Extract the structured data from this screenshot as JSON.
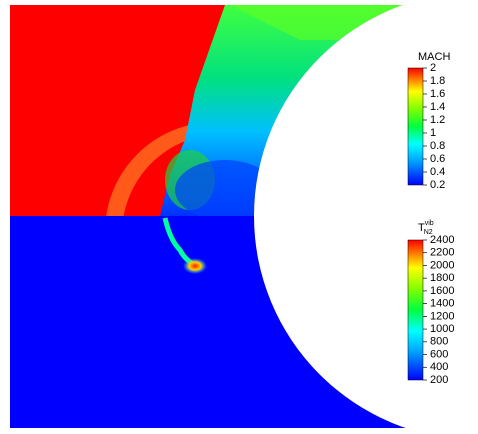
{
  "chart_data": [
    {
      "type": "colorbar",
      "title": "MACH",
      "ylim": [
        0.2,
        2
      ],
      "yticks": [
        0.2,
        0.4,
        0.6,
        0.8,
        1,
        1.2,
        1.4,
        1.6,
        1.8,
        2
      ]
    },
    {
      "type": "colorbar",
      "title": "T",
      "title_sup": "vib",
      "title_sub": "N2",
      "ylim": [
        200,
        2400
      ],
      "yticks": [
        200,
        400,
        600,
        800,
        1000,
        1200,
        1400,
        1600,
        1800,
        2000,
        2200,
        2400
      ]
    }
  ]
}
